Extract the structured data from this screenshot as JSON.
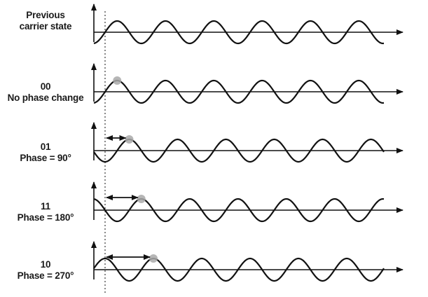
{
  "rows": [
    {
      "line1": "Previous",
      "line2": "carrier state",
      "phase_deg": 0,
      "marker": false
    },
    {
      "line1": "00",
      "line2": "No phase change",
      "phase_deg": 0,
      "marker": true
    },
    {
      "line1": "01",
      "line2": "Phase = 90°",
      "phase_deg": 90,
      "marker": true
    },
    {
      "line1": "11",
      "line2": "Phase = 180°",
      "phase_deg": 180,
      "marker": true
    },
    {
      "line1": "10",
      "line2": "Phase = 270°",
      "phase_deg": 270,
      "marker": true
    }
  ],
  "colors": {
    "ink": "#111111",
    "marker": "#a9a9a9"
  }
}
